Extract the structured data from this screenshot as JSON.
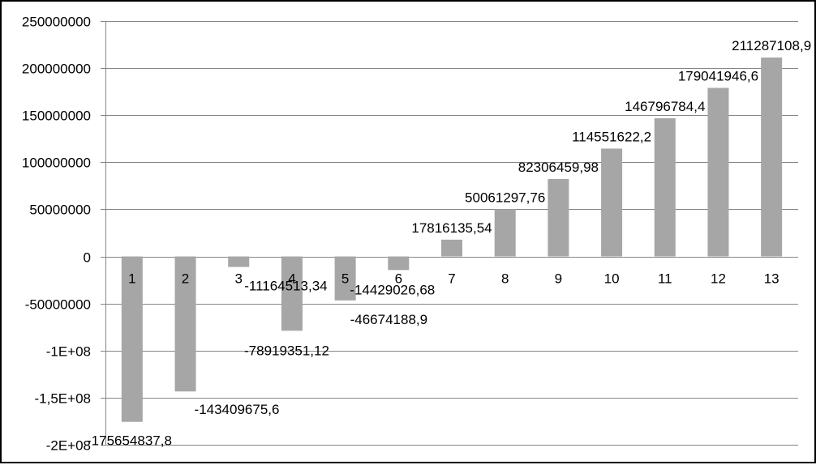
{
  "chart_data": {
    "type": "bar",
    "title": "",
    "xlabel": "",
    "ylabel": "",
    "ylim": [
      -200000000,
      250000000
    ],
    "grid": true,
    "legend": "none",
    "bar_color": "#a6a6a6",
    "grid_color": "#868686",
    "categories": [
      "1",
      "2",
      "3",
      "4",
      "5",
      "6",
      "7",
      "8",
      "9",
      "10",
      "11",
      "12",
      "13"
    ],
    "values": [
      -175654837.8,
      -143409675.6,
      -11164513.34,
      -78919351.12,
      -46674188.9,
      -14429026.68,
      17816135.54,
      50061297.76,
      82306459.98,
      114551622.2,
      146796784.4,
      179041946.6,
      211287108.9
    ],
    "data_labels": [
      "-175654837,8",
      "-143409675,6",
      "-11164513,34",
      "-78919351,12",
      "-46674188,9",
      "-14429026,68",
      "17816135,54",
      "50061297,76",
      "82306459,98",
      "114551622,2",
      "146796784,4",
      "179041946,6",
      "211287108,9"
    ],
    "y_ticks": [
      250000000,
      200000000,
      150000000,
      100000000,
      50000000,
      0,
      -50000000,
      -100000000,
      -150000000,
      -200000000
    ],
    "y_tick_labels": [
      "250000000",
      "200000000",
      "150000000",
      "100000000",
      "50000000",
      "0",
      "-50000000",
      "-1E+08",
      "-1,5E+08",
      "-2E+08"
    ]
  }
}
